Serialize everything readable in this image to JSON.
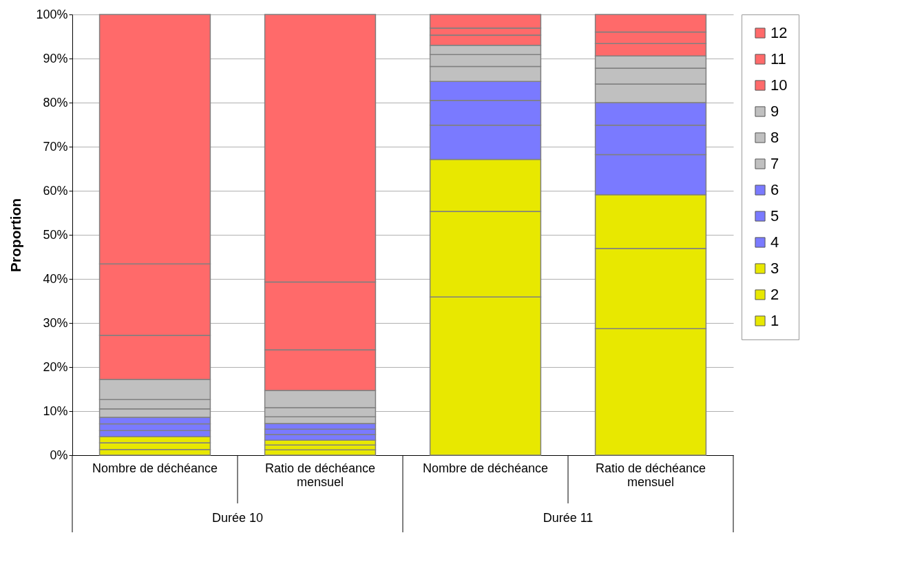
{
  "chart_data": {
    "type": "bar",
    "stacked": true,
    "ylabel": "Proportion",
    "categories": [
      "Nombre de déchéance",
      "Ratio de déchéance mensuel",
      "Nombre de déchéance",
      "Ratio de déchéance mensuel"
    ],
    "annotations": [
      "Durée 10",
      "Durée 11"
    ],
    "series": [
      {
        "name": "1",
        "color": "#e8e800",
        "values": [
          1.3,
          1.2,
          35.9,
          28.7
        ]
      },
      {
        "name": "2",
        "color": "#e8e800",
        "values": [
          1.5,
          1.1,
          19.4,
          18.2
        ]
      },
      {
        "name": "3",
        "color": "#e8e800",
        "values": [
          1.4,
          1.1,
          11.8,
          12.2
        ]
      },
      {
        "name": "4",
        "color": "#7a7aff",
        "values": [
          1.4,
          1.3,
          7.8,
          9.1
        ]
      },
      {
        "name": "5",
        "color": "#7a7aff",
        "values": [
          1.5,
          1.2,
          5.6,
          6.7
        ]
      },
      {
        "name": "6",
        "color": "#7a7aff",
        "values": [
          1.5,
          1.3,
          4.3,
          5.1
        ]
      },
      {
        "name": "7",
        "color": "#c0c0c0",
        "values": [
          1.9,
          1.5,
          3.4,
          4.2
        ]
      },
      {
        "name": "8",
        "color": "#c0c0c0",
        "values": [
          2.1,
          2.1,
          2.7,
          3.6
        ]
      },
      {
        "name": "9",
        "color": "#c0c0c0",
        "values": [
          4.6,
          3.9,
          2.1,
          2.8
        ]
      },
      {
        "name": "10",
        "color": "#ff6a6a",
        "values": [
          10.0,
          9.2,
          2.3,
          2.8
        ]
      },
      {
        "name": "11",
        "color": "#ff6a6a",
        "values": [
          16.2,
          15.4,
          1.6,
          2.6
        ]
      },
      {
        "name": "12",
        "color": "#ff6a6a",
        "values": [
          56.6,
          60.7,
          3.1,
          4.0
        ]
      }
    ],
    "ylim": [
      0,
      100
    ],
    "yticks": [
      {
        "value": 0,
        "label": "0%"
      },
      {
        "value": 10,
        "label": "10%"
      },
      {
        "value": 20,
        "label": "20%"
      },
      {
        "value": 30,
        "label": "30%"
      },
      {
        "value": 40,
        "label": "40%"
      },
      {
        "value": 50,
        "label": "50%"
      },
      {
        "value": 60,
        "label": "60%"
      },
      {
        "value": 70,
        "label": "70%"
      },
      {
        "value": 80,
        "label": "80%"
      },
      {
        "value": 90,
        "label": "90%"
      },
      {
        "value": 100,
        "label": "100%"
      }
    ],
    "grid": "y",
    "legend": "right"
  }
}
